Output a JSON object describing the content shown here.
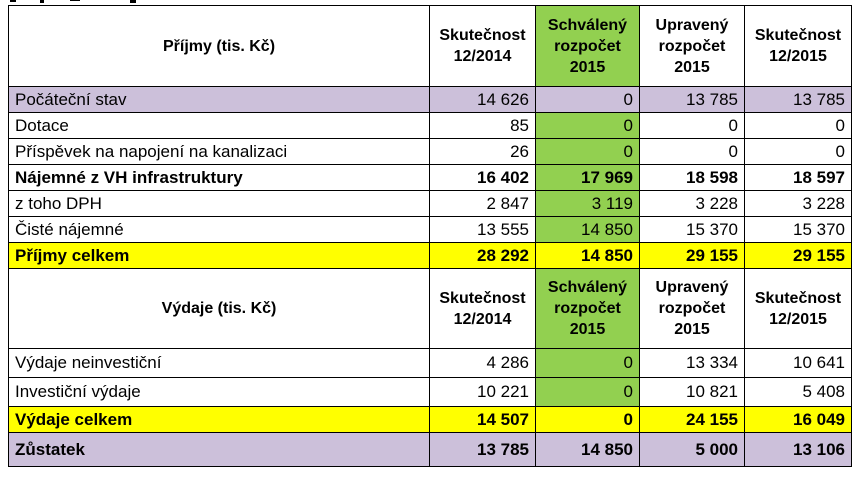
{
  "header_top": {
    "title": "Příjmy (tis. Kč)",
    "columns": [
      "Skutečnost 12/2014",
      "Schválený rozpočet 2015",
      "Upravený rozpočet 2015",
      "Skutečnost 12/2015"
    ]
  },
  "income_rows": [
    {
      "label": "Počáteční stav",
      "values": [
        "14 626",
        "0",
        "13 785",
        "13 785"
      ]
    },
    {
      "label": "Dotace",
      "values": [
        "85",
        "0",
        "0",
        "0"
      ]
    },
    {
      "label": "Příspěvek na napojení na kanalizaci",
      "values": [
        "26",
        "0",
        "0",
        "0"
      ]
    },
    {
      "label": "Nájemné z VH infrastruktury",
      "values": [
        "16 402",
        "17 969",
        "18 598",
        "18 597"
      ]
    },
    {
      "label": "z toho DPH",
      "values": [
        "2 847",
        "3 119",
        "3 228",
        "3 228"
      ]
    },
    {
      "label": "Čisté nájemné",
      "values": [
        "13 555",
        "14 850",
        "15 370",
        "15 370"
      ]
    },
    {
      "label": "Příjmy celkem",
      "values": [
        "28 292",
        "14 850",
        "29 155",
        "29 155"
      ]
    }
  ],
  "header_bottom": {
    "title": "Výdaje (tis. Kč)",
    "columns": [
      "Skutečnost 12/2014",
      "Schválený rozpočet 2015",
      "Upravený rozpočet 2015",
      "Skutečnost 12/2015"
    ]
  },
  "expense_rows": [
    {
      "label": "Výdaje neinvestiční",
      "values": [
        "4 286",
        "0",
        "13 334",
        "10 641"
      ]
    },
    {
      "label": "Investiční výdaje",
      "values": [
        "10 221",
        "0",
        "10 821",
        "5 408"
      ]
    },
    {
      "label": "Výdaje celkem",
      "values": [
        "14 507",
        "0",
        "24 155",
        "16 049"
      ]
    }
  ],
  "balance_row": {
    "label": "Zůstatek",
    "values": [
      "13 785",
      "14 850",
      "5 000",
      "13 106"
    ]
  },
  "colors": {
    "approved_column": "#92d050",
    "total_rows": "#ffff00",
    "highlight_rows": "#ccc0da"
  }
}
